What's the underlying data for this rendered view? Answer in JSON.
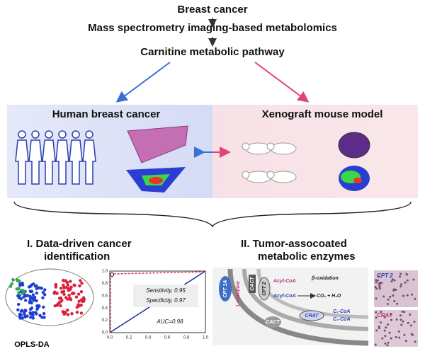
{
  "flow": [
    "Breast cancer",
    "Mass spectrometry imaging-based metabolomics",
    "Carnitine metabolic pathway"
  ],
  "panels": {
    "left": "Human breast cancer",
    "right": "Xenograft mouse model"
  },
  "sections": {
    "one": [
      "I. Data-driven cancer",
      "identification"
    ],
    "two": [
      "II. Tumor-assocoated",
      "metabolic enzymes"
    ]
  },
  "opls": "OPLS-DA",
  "roc": {
    "yticks": [
      "0.0",
      "0.2",
      "0.4",
      "0.6",
      "0.8",
      "1.0"
    ],
    "xticks": [
      "0.0",
      "0.2",
      "0.4",
      "0.6",
      "0.8",
      "1.0"
    ],
    "sensitivity": "Sensitivity, 0.95",
    "specificity": "Specificity, 0.97",
    "auc": "AUC=0.98"
  },
  "pathway": {
    "cpt1a": "CPT 1A",
    "lcarnitine": "L-carnitine",
    "cact_top": "CACT",
    "cpt2": "CPT 2",
    "acyl1": "Acyl-CoA",
    "beta": "β-oxidation",
    "acyl2": "Acyl-CoA",
    "co2": "CO₂ + H₂O",
    "c2": "C₂-CoA",
    "c3": "C₃-CoA",
    "crat": "CRAT",
    "cact_bottom": "CACT"
  },
  "images": {
    "cpt2": "CPT 2",
    "crat": "CRAT"
  }
}
